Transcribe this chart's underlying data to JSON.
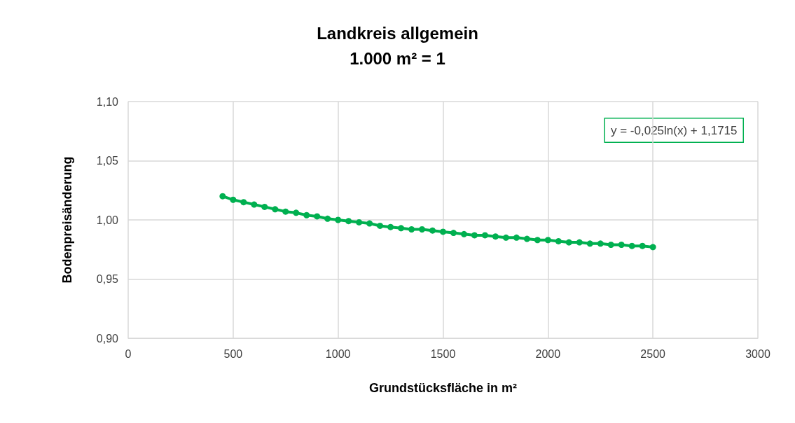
{
  "chart_data": {
    "type": "line",
    "title": "Landkreis allgemein",
    "subtitle": "1.000 m² = 1",
    "xlabel": "Grundstücksfläche in m²",
    "ylabel": "Bodenpreisänderung",
    "annotations": [
      "y = -0,025ln(x) + 1,1715"
    ],
    "x": [
      450,
      500,
      550,
      600,
      650,
      700,
      750,
      800,
      850,
      900,
      950,
      1000,
      1050,
      1100,
      1150,
      1200,
      1250,
      1300,
      1350,
      1400,
      1450,
      1500,
      1550,
      1600,
      1650,
      1700,
      1750,
      1800,
      1850,
      1900,
      1950,
      2000,
      2050,
      2100,
      2150,
      2200,
      2250,
      2300,
      2350,
      2400,
      2450,
      2500
    ],
    "series": [
      {
        "color": "#00b050",
        "values": [
          1.02,
          1.017,
          1.015,
          1.013,
          1.011,
          1.009,
          1.007,
          1.006,
          1.004,
          1.003,
          1.001,
          1.0,
          0.999,
          0.998,
          0.997,
          0.995,
          0.994,
          0.993,
          0.992,
          0.992,
          0.991,
          0.99,
          0.989,
          0.988,
          0.987,
          0.987,
          0.986,
          0.985,
          0.985,
          0.984,
          0.983,
          0.983,
          0.982,
          0.981,
          0.981,
          0.98,
          0.98,
          0.979,
          0.979,
          0.978,
          0.978,
          0.977
        ]
      }
    ],
    "xlim": [
      0,
      3000
    ],
    "xticks": [
      0,
      500,
      1000,
      1500,
      2000,
      2500,
      3000
    ],
    "ylim": [
      0.9,
      1.1
    ],
    "yticks": [
      {
        "value": 0.9,
        "label": "0,90"
      },
      {
        "value": 0.95,
        "label": "0,95"
      },
      {
        "value": 1.0,
        "label": "1,00"
      },
      {
        "value": 1.05,
        "label": "1,05"
      },
      {
        "value": 1.1,
        "label": "1,10"
      }
    ],
    "grid": true,
    "marker": "circle",
    "line_style": "solid"
  }
}
